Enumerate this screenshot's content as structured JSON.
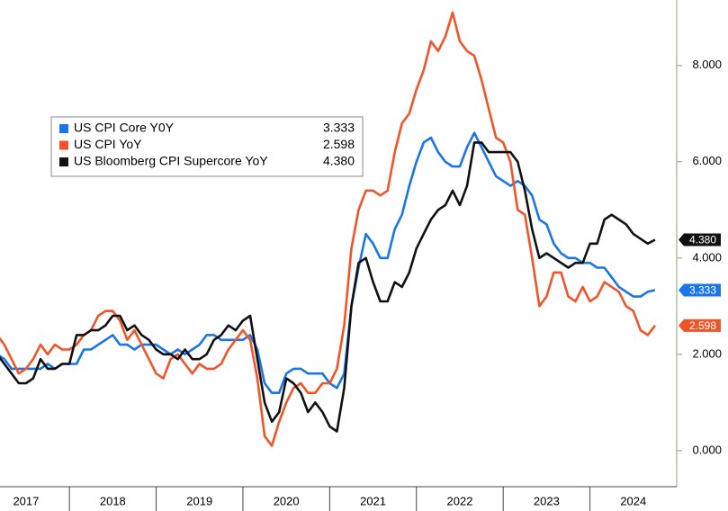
{
  "chart_data": {
    "type": "line",
    "x": [
      2017.167,
      2017.25,
      2017.333,
      2017.417,
      2017.5,
      2017.583,
      2017.667,
      2017.75,
      2017.833,
      2017.917,
      2018,
      2018.083,
      2018.167,
      2018.25,
      2018.333,
      2018.417,
      2018.5,
      2018.583,
      2018.667,
      2018.75,
      2018.833,
      2018.917,
      2019,
      2019.083,
      2019.167,
      2019.25,
      2019.333,
      2019.417,
      2019.5,
      2019.583,
      2019.667,
      2019.75,
      2019.833,
      2019.917,
      2020,
      2020.083,
      2020.167,
      2020.25,
      2020.333,
      2020.417,
      2020.5,
      2020.583,
      2020.667,
      2020.75,
      2020.833,
      2020.917,
      2021,
      2021.083,
      2021.167,
      2021.25,
      2021.333,
      2021.417,
      2021.5,
      2021.583,
      2021.667,
      2021.75,
      2021.833,
      2021.917,
      2022,
      2022.083,
      2022.167,
      2022.25,
      2022.333,
      2022.417,
      2022.5,
      2022.583,
      2022.667,
      2022.75,
      2022.833,
      2022.917,
      2023,
      2023.083,
      2023.167,
      2023.25,
      2023.333,
      2023.417,
      2023.5,
      2023.583,
      2023.667,
      2023.75,
      2023.833,
      2023.917,
      2024,
      2024.083,
      2024.167,
      2024.25,
      2024.333,
      2024.417,
      2024.5,
      2024.583,
      2024.667,
      2024.75
    ],
    "series": [
      {
        "name": "US CPI Core Y0Y",
        "color": "#1a75e8",
        "values": [
          2.0,
          1.9,
          1.7,
          1.7,
          1.7,
          1.7,
          1.7,
          1.8,
          1.7,
          1.8,
          1.8,
          1.8,
          2.1,
          2.1,
          2.2,
          2.3,
          2.4,
          2.2,
          2.2,
          2.1,
          2.2,
          2.2,
          2.2,
          2.1,
          2.0,
          2.1,
          2.0,
          2.1,
          2.2,
          2.4,
          2.4,
          2.3,
          2.3,
          2.3,
          2.3,
          2.4,
          2.1,
          1.4,
          1.2,
          1.2,
          1.6,
          1.7,
          1.7,
          1.6,
          1.6,
          1.6,
          1.4,
          1.3,
          1.6,
          3.0,
          3.8,
          4.5,
          4.3,
          4.0,
          4.0,
          4.6,
          4.9,
          5.5,
          6.0,
          6.4,
          6.5,
          6.2,
          6.0,
          5.9,
          5.9,
          6.3,
          6.6,
          6.3,
          6.0,
          5.7,
          5.6,
          5.5,
          5.6,
          5.5,
          5.3,
          4.8,
          4.7,
          4.3,
          4.1,
          4.0,
          4.0,
          3.9,
          3.9,
          3.8,
          3.8,
          3.6,
          3.4,
          3.3,
          3.2,
          3.2,
          3.3,
          3.333
        ]
      },
      {
        "name": "US CPI YoY",
        "color": "#f0552a",
        "values": [
          2.4,
          2.2,
          1.9,
          1.6,
          1.7,
          1.9,
          2.2,
          2.0,
          2.2,
          2.1,
          2.1,
          2.2,
          2.4,
          2.5,
          2.8,
          2.9,
          2.9,
          2.7,
          2.3,
          2.5,
          2.2,
          1.9,
          1.6,
          1.5,
          1.9,
          2.0,
          1.8,
          1.6,
          1.8,
          1.7,
          1.7,
          1.8,
          2.1,
          2.3,
          2.5,
          2.3,
          1.5,
          0.3,
          0.1,
          0.6,
          1.0,
          1.3,
          1.4,
          1.2,
          1.2,
          1.4,
          1.4,
          1.7,
          2.6,
          4.2,
          5.0,
          5.4,
          5.4,
          5.3,
          5.4,
          6.2,
          6.8,
          7.0,
          7.5,
          7.9,
          8.5,
          8.3,
          8.6,
          9.1,
          8.5,
          8.3,
          8.2,
          7.7,
          7.1,
          6.5,
          6.4,
          6.0,
          5.0,
          4.9,
          4.0,
          3.0,
          3.2,
          3.7,
          3.7,
          3.2,
          3.1,
          3.4,
          3.1,
          3.2,
          3.5,
          3.4,
          3.3,
          3.0,
          2.9,
          2.5,
          2.4,
          2.598
        ]
      },
      {
        "name": "US Bloomberg CPI Supercore YoY",
        "color": "#111111",
        "values": [
          2.0,
          1.8,
          1.6,
          1.4,
          1.4,
          1.5,
          1.9,
          1.7,
          1.7,
          1.8,
          1.8,
          2.4,
          2.4,
          2.5,
          2.5,
          2.6,
          2.8,
          2.8,
          2.5,
          2.6,
          2.4,
          2.3,
          2.1,
          2.0,
          2.0,
          1.9,
          2.1,
          1.9,
          1.9,
          2.0,
          2.3,
          2.4,
          2.6,
          2.5,
          2.7,
          2.8,
          1.9,
          1.0,
          0.6,
          0.8,
          1.5,
          1.4,
          1.2,
          0.8,
          1.0,
          0.8,
          0.5,
          0.4,
          1.3,
          3.0,
          3.9,
          4.0,
          3.5,
          3.1,
          3.1,
          3.5,
          3.4,
          3.7,
          4.2,
          4.5,
          4.8,
          5.0,
          5.1,
          5.4,
          5.1,
          5.5,
          6.4,
          6.4,
          6.2,
          6.2,
          6.2,
          6.2,
          6.0,
          5.4,
          4.6,
          4.0,
          4.1,
          4.0,
          3.9,
          3.8,
          3.9,
          3.9,
          4.3,
          4.3,
          4.8,
          4.9,
          4.8,
          4.7,
          4.5,
          4.4,
          4.3,
          4.38
        ],
        "value_labels": [
          null,
          null,
          null,
          null,
          null,
          null,
          null,
          null,
          null,
          null,
          null,
          null,
          null,
          null,
          null,
          null,
          null,
          null,
          null,
          null,
          null,
          null,
          null,
          null,
          null,
          null,
          null,
          null,
          null,
          null,
          null,
          null,
          null,
          null,
          null,
          null,
          null,
          null,
          null,
          null,
          null,
          null,
          null,
          null,
          null,
          null,
          null,
          null,
          null,
          null,
          null,
          null,
          null,
          null,
          null,
          null,
          null,
          null,
          null,
          null,
          null,
          null,
          null,
          null,
          null,
          null,
          null,
          null,
          null,
          null,
          null,
          null,
          null,
          null,
          null,
          null,
          null,
          null,
          null,
          null,
          null,
          null,
          null,
          null,
          null,
          null,
          null,
          null,
          null,
          null,
          null,
          "4.380"
        ]
      }
    ],
    "xlim": [
      2017.2,
      2025.0
    ],
    "xticks": [
      {
        "value": 2017.5,
        "label": "2017"
      },
      {
        "value": 2018.5,
        "label": "2018"
      },
      {
        "value": 2019.5,
        "label": "2019"
      },
      {
        "value": 2020.5,
        "label": "2020"
      },
      {
        "value": 2021.5,
        "label": "2021"
      },
      {
        "value": 2022.5,
        "label": "2022"
      },
      {
        "value": 2023.5,
        "label": "2023"
      },
      {
        "value": 2024.5,
        "label": "2024"
      }
    ],
    "ylim": [
      -0.75,
      9.36
    ],
    "yticks": [
      {
        "value": 0,
        "label": "0.000"
      },
      {
        "value": 2,
        "label": "2.000"
      },
      {
        "value": 4,
        "label": "4.000"
      },
      {
        "value": 6,
        "label": "6.000"
      },
      {
        "value": 8,
        "label": "8.000"
      }
    ],
    "grid": false
  }
}
